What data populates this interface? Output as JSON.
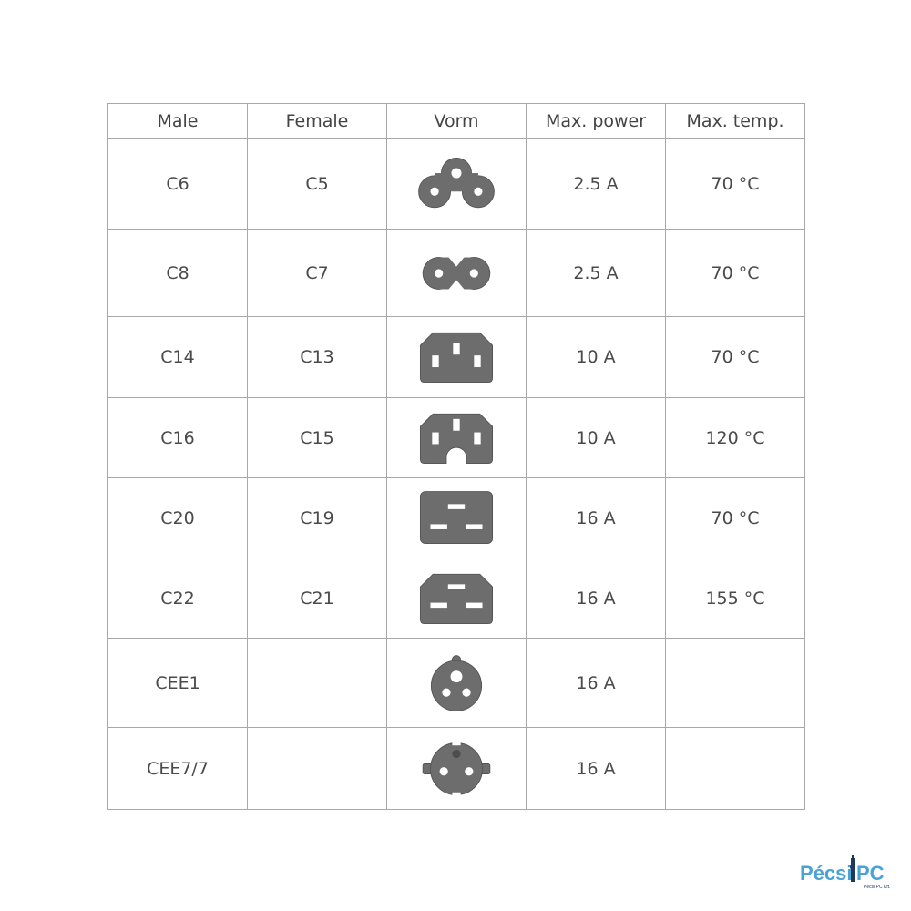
{
  "headers": [
    "Male",
    "Female",
    "Vorm",
    "Max. power",
    "Max. temp."
  ],
  "rows": [
    {
      "male": "C6",
      "female": "C5",
      "icon": "c5-cloverleaf-icon",
      "power": "2.5 A",
      "temp": "70 °C"
    },
    {
      "male": "C8",
      "female": "C7",
      "icon": "c7-figure8-icon",
      "power": "2.5 A",
      "temp": "70 °C"
    },
    {
      "male": "C14",
      "female": "C13",
      "icon": "c13-icon",
      "power": "10 A",
      "temp": "70 °C"
    },
    {
      "male": "C16",
      "female": "C15",
      "icon": "c15-icon",
      "power": "10 A",
      "temp": "120 °C"
    },
    {
      "male": "C20",
      "female": "C19",
      "icon": "c19-icon",
      "power": "16 A",
      "temp": "70 °C"
    },
    {
      "male": "C22",
      "female": "C21",
      "icon": "c21-icon",
      "power": "16 A",
      "temp": "155 °C"
    },
    {
      "male": "CEE1",
      "female": "",
      "icon": "cee1-icon",
      "power": "16 A",
      "temp": ""
    },
    {
      "male": "CEE7/7",
      "female": "",
      "icon": "cee77-schuko-icon",
      "power": "16 A",
      "temp": ""
    }
  ],
  "logo": {
    "text": "PécsiPC",
    "sub": "Pécsi PC Kft.",
    "color": "#4aa3d6"
  },
  "colors": {
    "icon_fill": "#6d6d6d",
    "border": "#a8a8a8"
  }
}
